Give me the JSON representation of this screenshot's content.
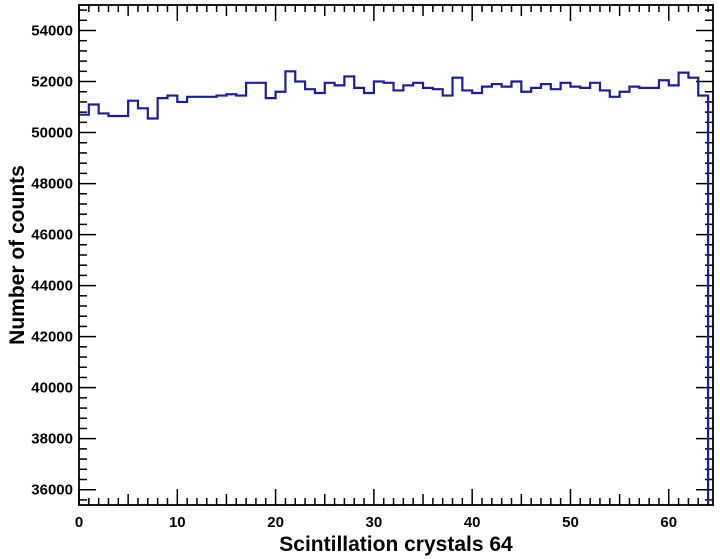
{
  "chart_data": {
    "type": "histogram",
    "title": "",
    "xlabel": "Scintillation crystals 64",
    "ylabel": "Number of counts",
    "xlim": [
      0,
      64.5
    ],
    "ylim": [
      35400,
      55000
    ],
    "x_ticks": [
      0,
      10,
      20,
      30,
      40,
      50,
      60
    ],
    "y_ticks": [
      36000,
      38000,
      40000,
      42000,
      44000,
      46000,
      48000,
      50000,
      52000,
      54000
    ],
    "bin_width": 1,
    "grid": false,
    "legend": "none",
    "line_color": "#1c1ca8",
    "bins": [
      {
        "x": 0,
        "value": 50700
      },
      {
        "x": 1,
        "value": 51100
      },
      {
        "x": 2,
        "value": 50750
      },
      {
        "x": 3,
        "value": 50650
      },
      {
        "x": 4,
        "value": 50650
      },
      {
        "x": 5,
        "value": 51250
      },
      {
        "x": 6,
        "value": 50950
      },
      {
        "x": 7,
        "value": 50550
      },
      {
        "x": 8,
        "value": 51350
      },
      {
        "x": 9,
        "value": 51450
      },
      {
        "x": 10,
        "value": 51200
      },
      {
        "x": 11,
        "value": 51400
      },
      {
        "x": 12,
        "value": 51400
      },
      {
        "x": 13,
        "value": 51400
      },
      {
        "x": 14,
        "value": 51450
      },
      {
        "x": 15,
        "value": 51500
      },
      {
        "x": 16,
        "value": 51450
      },
      {
        "x": 17,
        "value": 51950
      },
      {
        "x": 18,
        "value": 51950
      },
      {
        "x": 19,
        "value": 51350
      },
      {
        "x": 20,
        "value": 51600
      },
      {
        "x": 21,
        "value": 52400
      },
      {
        "x": 22,
        "value": 52000
      },
      {
        "x": 23,
        "value": 51700
      },
      {
        "x": 24,
        "value": 51550
      },
      {
        "x": 25,
        "value": 51950
      },
      {
        "x": 26,
        "value": 51850
      },
      {
        "x": 27,
        "value": 52200
      },
      {
        "x": 28,
        "value": 51750
      },
      {
        "x": 29,
        "value": 51550
      },
      {
        "x": 30,
        "value": 52000
      },
      {
        "x": 31,
        "value": 51950
      },
      {
        "x": 32,
        "value": 51650
      },
      {
        "x": 33,
        "value": 51850
      },
      {
        "x": 34,
        "value": 51950
      },
      {
        "x": 35,
        "value": 51750
      },
      {
        "x": 36,
        "value": 51700
      },
      {
        "x": 37,
        "value": 51450
      },
      {
        "x": 38,
        "value": 52150
      },
      {
        "x": 39,
        "value": 51650
      },
      {
        "x": 40,
        "value": 51550
      },
      {
        "x": 41,
        "value": 51800
      },
      {
        "x": 42,
        "value": 51900
      },
      {
        "x": 43,
        "value": 51800
      },
      {
        "x": 44,
        "value": 52000
      },
      {
        "x": 45,
        "value": 51600
      },
      {
        "x": 46,
        "value": 51750
      },
      {
        "x": 47,
        "value": 51900
      },
      {
        "x": 48,
        "value": 51700
      },
      {
        "x": 49,
        "value": 51950
      },
      {
        "x": 50,
        "value": 51800
      },
      {
        "x": 51,
        "value": 51750
      },
      {
        "x": 52,
        "value": 51950
      },
      {
        "x": 53,
        "value": 51650
      },
      {
        "x": 54,
        "value": 51400
      },
      {
        "x": 55,
        "value": 51600
      },
      {
        "x": 56,
        "value": 51800
      },
      {
        "x": 57,
        "value": 51750
      },
      {
        "x": 58,
        "value": 51750
      },
      {
        "x": 59,
        "value": 52050
      },
      {
        "x": 60,
        "value": 51850
      },
      {
        "x": 61,
        "value": 52350
      },
      {
        "x": 62,
        "value": 52150
      },
      {
        "x": 63,
        "value": 51450
      }
    ]
  }
}
